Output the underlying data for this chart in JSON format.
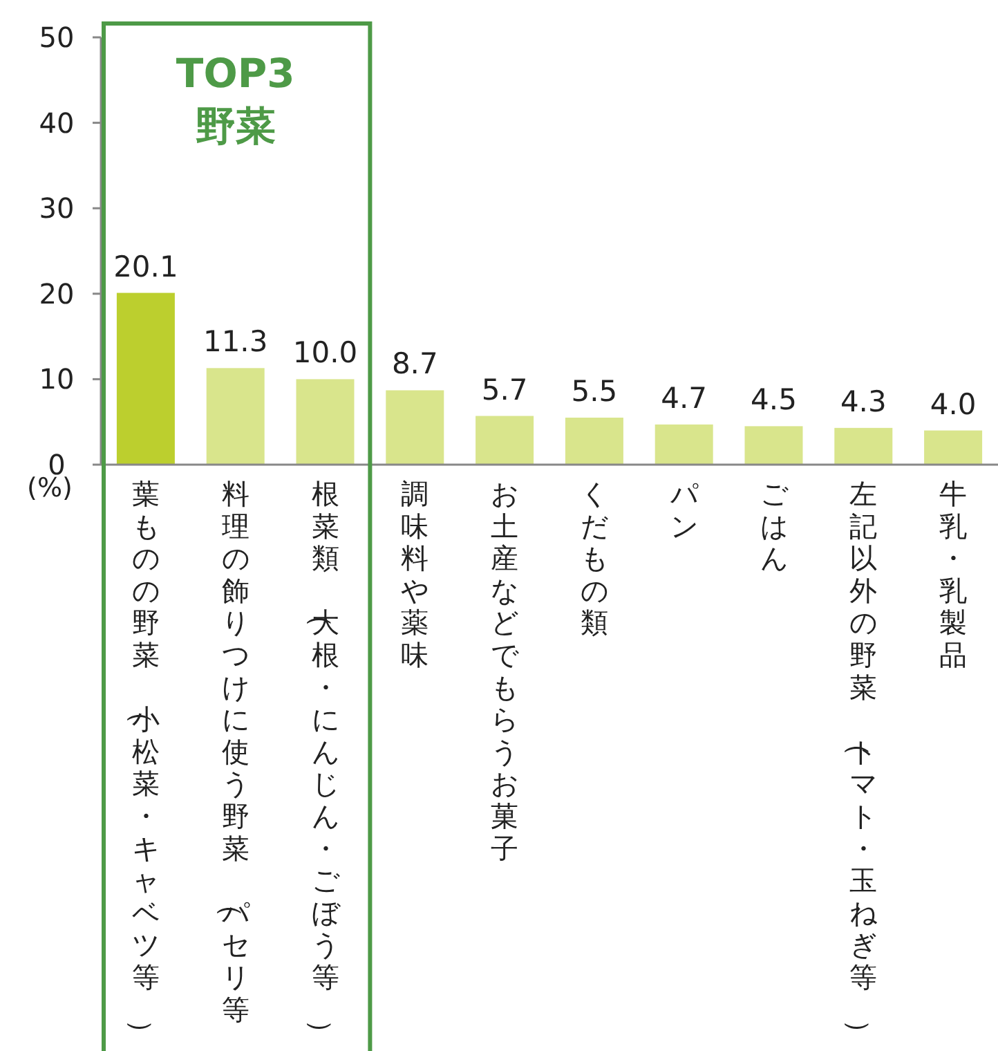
{
  "chart_data": {
    "type": "bar",
    "ylabel": "(%)",
    "categories": [
      "葉ものの野菜（小松菜・キャベツ等）",
      "料理の飾りつけに使う野菜（パセリ等",
      "根菜類（大根・にんじん・ごぼう等）",
      "調味料や薬味",
      "お土産などでもらうお菓子",
      "くだもの類",
      "パン",
      "ごはん",
      "左記以外の野菜（トマト・玉ねぎ等）",
      "牛乳・乳製品"
    ],
    "values": [
      20.1,
      11.3,
      10.0,
      8.7,
      5.7,
      5.5,
      4.7,
      4.5,
      4.3,
      4.0
    ],
    "colors": [
      "#bccf2e",
      "#d9e58c",
      "#d9e58c",
      "#d9e58c",
      "#d9e58c",
      "#d9e58c",
      "#d9e58c",
      "#d9e58c",
      "#d9e58c",
      "#d9e58c"
    ],
    "value_labels": [
      "20.1",
      "11.3",
      "10.0",
      "8.7",
      "5.7",
      "5.5",
      "4.7",
      "4.5",
      "4.3",
      "4.0"
    ],
    "ylim": [
      0,
      50
    ],
    "yticks": [
      0,
      10,
      20,
      30,
      40,
      50
    ],
    "grid": false,
    "annotations": [
      "TOP3",
      "野菜"
    ]
  }
}
